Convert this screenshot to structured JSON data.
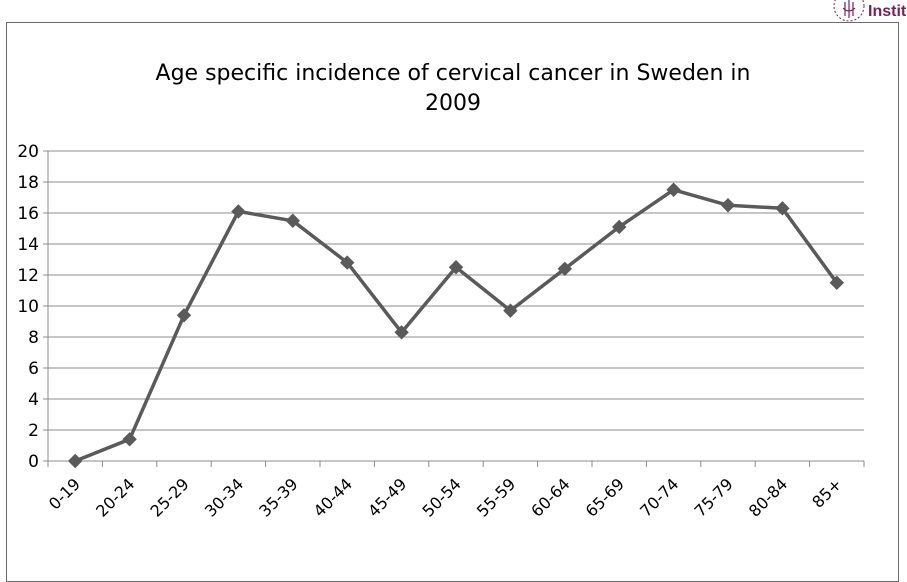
{
  "logo": {
    "text": "Institute"
  },
  "chart_data": {
    "type": "line",
    "title_line1": "Age specific incidence of cervical cancer in Sweden in",
    "title_line2": "2009",
    "xlabel": "",
    "ylabel": "",
    "ylim": [
      0,
      20
    ],
    "y_ticks": [
      0,
      2,
      4,
      6,
      8,
      10,
      12,
      14,
      16,
      18,
      20
    ],
    "grid": true,
    "legend": "none",
    "categories": [
      "0-19",
      "20-24",
      "25-29",
      "30-34",
      "35-39",
      "40-44",
      "45-49",
      "50-54",
      "55-59",
      "60-64",
      "65-69",
      "70-74",
      "75-79",
      "80-84",
      "85+"
    ],
    "series": [
      {
        "values": [
          0.0,
          1.4,
          9.4,
          16.1,
          15.5,
          12.8,
          8.3,
          12.5,
          9.7,
          12.4,
          15.1,
          17.5,
          16.5,
          16.3,
          11.5
        ],
        "color": "#5a5a5a"
      }
    ]
  }
}
